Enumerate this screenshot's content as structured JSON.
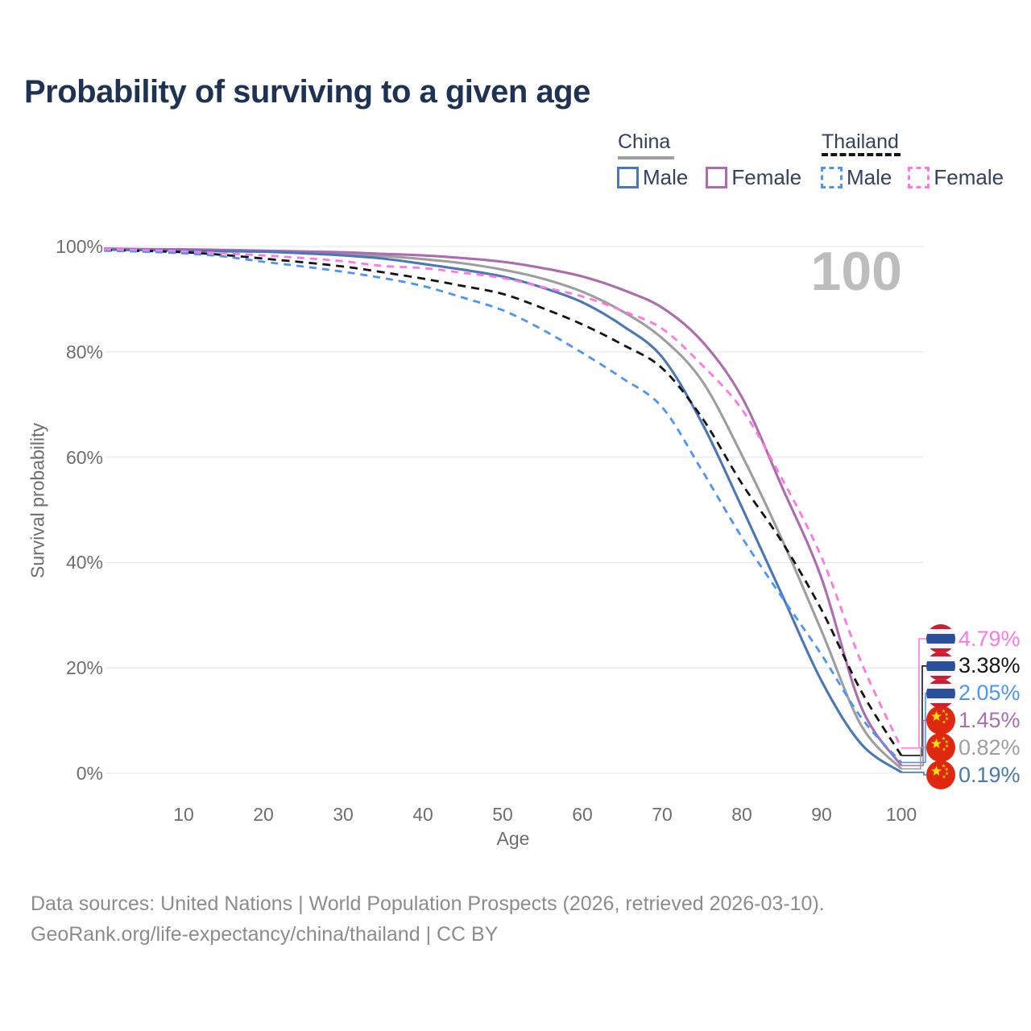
{
  "title": "Probability of surviving to a given age",
  "watermark": "100",
  "legend": {
    "groups": [
      {
        "label": "China",
        "line_style": "solid",
        "underline_color": "#9e9e9e",
        "items": [
          {
            "label": "Male",
            "color": "#4a77b5"
          },
          {
            "label": "Female",
            "color": "#ae6cb0"
          }
        ]
      },
      {
        "label": "Thailand",
        "line_style": "dashed",
        "underline_color": "#151515",
        "items": [
          {
            "label": "Male",
            "color": "#4d94f7"
          },
          {
            "label": "Female",
            "color": "#ff78e2"
          }
        ]
      }
    ]
  },
  "chart_data": {
    "type": "line",
    "title": "Probability of surviving to a given age",
    "xlabel": "Age",
    "ylabel": "Survival probability",
    "xlim": [
      0,
      100
    ],
    "ylim": [
      0,
      100
    ],
    "xticks": [
      10,
      20,
      30,
      40,
      50,
      60,
      70,
      80,
      90,
      100
    ],
    "yticks": [
      0,
      20,
      40,
      60,
      80,
      100
    ],
    "ytick_suffix": "%",
    "grid": "horizontal",
    "legend_position": "top-right",
    "x": [
      0,
      5,
      10,
      15,
      20,
      25,
      30,
      35,
      40,
      45,
      50,
      55,
      60,
      65,
      70,
      75,
      80,
      85,
      90,
      95,
      100
    ],
    "series": [
      {
        "name": "China Male",
        "color": "#4a77b5",
        "dash": false,
        "flag": "china",
        "end_label": "0.19%",
        "values": [
          99.4,
          99.3,
          99.2,
          99.1,
          99.0,
          98.7,
          98.3,
          97.7,
          96.7,
          95.6,
          94.3,
          92.2,
          89.4,
          85.0,
          79.0,
          66.5,
          50.5,
          34.0,
          17.5,
          5.5,
          0.19
        ]
      },
      {
        "name": "China Female",
        "color": "#ae6cb0",
        "dash": false,
        "flag": "china",
        "end_label": "1.45%",
        "values": [
          99.6,
          99.5,
          99.45,
          99.35,
          99.2,
          99.05,
          98.9,
          98.6,
          98.3,
          97.8,
          97.1,
          95.9,
          94.3,
          91.8,
          88.4,
          82.0,
          71.4,
          54.5,
          37.0,
          12.5,
          1.45
        ]
      },
      {
        "name": "China Both sexes",
        "color": "#9e9e9e",
        "dash": false,
        "flag": "china",
        "end_label": "0.82%",
        "values": [
          99.5,
          99.4,
          99.3,
          99.2,
          99.1,
          98.9,
          98.6,
          98.2,
          97.6,
          96.8,
          95.6,
          93.9,
          91.4,
          87.7,
          82.6,
          74.5,
          60.4,
          44.5,
          27.0,
          9.0,
          0.82
        ]
      },
      {
        "name": "Thailand Male",
        "color": "#4d94f7",
        "dash": true,
        "flag": "thailand",
        "end_label": "2.05%",
        "values": [
          99.2,
          99.0,
          98.7,
          98.1,
          97.1,
          96.2,
          95.2,
          94.0,
          92.5,
          90.3,
          87.9,
          84.2,
          79.8,
          75.0,
          69.5,
          57.5,
          44.8,
          33.5,
          22.5,
          10.5,
          2.05
        ]
      },
      {
        "name": "Thailand Both sexes",
        "color": "#141414",
        "dash": true,
        "flag": "thailand",
        "end_label": "3.38%",
        "values": [
          99.35,
          99.15,
          98.9,
          98.4,
          97.7,
          97.0,
          96.2,
          95.1,
          93.9,
          92.5,
          91.0,
          88.3,
          85.2,
          81.4,
          76.9,
          67.5,
          55.0,
          44.0,
          31.0,
          15.5,
          3.38
        ]
      },
      {
        "name": "Thailand Female",
        "color": "#ff78e2",
        "dash": true,
        "flag": "thailand",
        "end_label": "4.79%",
        "values": [
          99.5,
          99.3,
          99.1,
          98.7,
          98.3,
          97.8,
          97.2,
          96.3,
          95.9,
          95.0,
          94.0,
          92.3,
          90.5,
          87.8,
          84.4,
          77.5,
          69.1,
          56.0,
          41.0,
          21.0,
          4.79
        ]
      }
    ],
    "annotations": {
      "age_counter": "100"
    }
  },
  "footer": {
    "line1": "Data sources: United Nations | World Population Prospects (2026, retrieved 2026-03-10).",
    "line2": "GeoRank.org/life-expectancy/china/thailand | CC BY"
  }
}
